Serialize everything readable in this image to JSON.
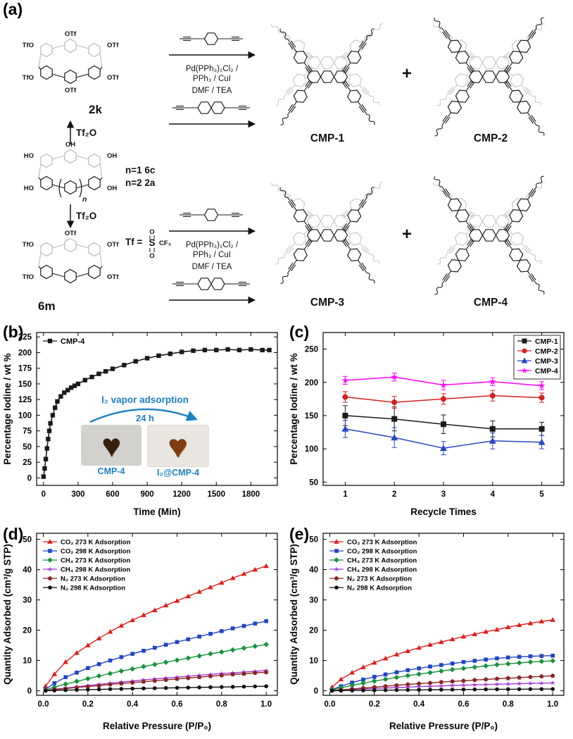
{
  "panel_labels": {
    "a": "(a)",
    "b": "(b)",
    "c": "(c)",
    "d": "(d)",
    "e": "(e)"
  },
  "scheme": {
    "compound_top": "2k",
    "compound_mid_n1": "n=1 6c",
    "compound_mid_n2": "n=2 2a",
    "compound_bottom": "6m",
    "tf2o": "Tf₂O",
    "catalyst_line1": "Pd(PPh₃)₂Cl₂ /",
    "catalyst_line2": "PPh₃ / CuI",
    "solvent": "DMF / TEA",
    "tf_eq": "Tf =",
    "tf_s": "S",
    "tf_o": "O",
    "tf_cf3": "CF₃",
    "plus": "+",
    "products": [
      "CMP-1",
      "CMP-2",
      "CMP-3",
      "CMP-4"
    ],
    "otf": "OTf",
    "tfo": "TfO",
    "oh": "OH",
    "ho": "HO",
    "n": "n"
  },
  "chart_data": [
    {
      "id": "b",
      "type": "line",
      "xlabel": "Time (Min)",
      "ylabel": "Percentage Iodine / wt %",
      "xlim": [
        -60,
        2030
      ],
      "ylim": [
        -12,
        232
      ],
      "xticks": [
        0,
        300,
        600,
        900,
        1200,
        1500,
        1800
      ],
      "xtick_labels": [
        "0",
        "300",
        "600",
        "900",
        "1200",
        "1500",
        "1800"
      ],
      "yticks": [
        0,
        25,
        50,
        75,
        100,
        125,
        150,
        175,
        200,
        225
      ],
      "ytick_labels": [
        "0",
        "25",
        "50",
        "75",
        "100",
        "125",
        "150",
        "175",
        "200",
        "225"
      ],
      "legend": {
        "pos": "tl",
        "box": false,
        "fs": 11
      },
      "msize": 3.2,
      "lw": 1.6,
      "series": [
        {
          "name": "CMP-4",
          "color": "#1a1a1a",
          "marker": "square",
          "x": [
            0,
            10,
            20,
            30,
            40,
            50,
            60,
            80,
            100,
            120,
            150,
            180,
            210,
            240,
            270,
            300,
            360,
            420,
            480,
            540,
            600,
            700,
            800,
            900,
            1000,
            1100,
            1200,
            1300,
            1400,
            1500,
            1600,
            1700,
            1800,
            1900,
            1960
          ],
          "y": [
            2,
            15,
            30,
            47,
            62,
            75,
            87,
            100,
            112,
            122,
            130,
            136,
            140,
            144,
            147,
            150,
            156,
            161,
            166,
            170,
            174,
            180,
            186,
            191,
            195,
            198,
            201,
            203,
            204,
            204,
            205,
            204,
            205,
            204,
            204
          ]
        }
      ],
      "inset": {
        "line1": "I₂ vapor adsorption",
        "line2": "24 h",
        "photo1_label": "CMP-4",
        "photo2_label": "I₂@CMP-4",
        "heart": "♥",
        "text_color": "#1b80c4"
      }
    },
    {
      "id": "c",
      "type": "line",
      "xlabel": "Recycle Times",
      "ylabel": "Percentage Iodine / wt %",
      "xlim": [
        0.55,
        5.45
      ],
      "ylim": [
        45,
        275
      ],
      "xticks": [
        1,
        2,
        3,
        4,
        5
      ],
      "xtick_labels": [
        "1",
        "2",
        "3",
        "4",
        "5"
      ],
      "yticks": [
        50,
        100,
        150,
        200,
        250
      ],
      "ytick_labels": [
        "50",
        "100",
        "150",
        "200",
        "250"
      ],
      "legend": {
        "pos": "tr",
        "box": true,
        "w": 66,
        "fs": 10.5
      },
      "msize": 4,
      "lw": 1.5,
      "series": [
        {
          "name": "CMP-1",
          "color": "#1a1a1a",
          "marker": "square",
          "x": [
            1,
            2,
            3,
            4,
            5
          ],
          "y": [
            150,
            145,
            137,
            130,
            130
          ],
          "err": [
            15,
            18,
            14,
            12,
            10
          ]
        },
        {
          "name": "CMP-2",
          "color": "#d42020",
          "marker": "circle",
          "x": [
            1,
            2,
            3,
            4,
            5
          ],
          "y": [
            178,
            170,
            175,
            180,
            177
          ],
          "err": [
            8,
            9,
            8,
            8,
            7
          ]
        },
        {
          "name": "CMP-3",
          "color": "#2847c8",
          "marker": "triangle",
          "x": [
            1,
            2,
            3,
            4,
            5
          ],
          "y": [
            130,
            117,
            101,
            112,
            110
          ],
          "err": [
            13,
            15,
            10,
            12,
            10
          ]
        },
        {
          "name": "CMP-4",
          "color": "#ff00ff",
          "marker": "star",
          "x": [
            1,
            2,
            3,
            4,
            5
          ],
          "y": [
            203,
            208,
            196,
            201,
            195
          ],
          "err": [
            6,
            6,
            7,
            6,
            6
          ]
        }
      ]
    },
    {
      "id": "d",
      "type": "line",
      "xlabel": "Relative Pressure (P/P₀)",
      "ylabel": "Quantity Adsorbed (cm³/g STP)",
      "xlim": [
        -0.03,
        1.05
      ],
      "ylim": [
        -1.5,
        52
      ],
      "xticks": [
        0,
        0.2,
        0.4,
        0.6,
        0.8,
        1.0
      ],
      "xtick_labels": [
        "0.0",
        "0.2",
        "0.4",
        "0.6",
        "0.8",
        "1.0"
      ],
      "yticks": [
        0,
        10,
        20,
        30,
        40,
        50
      ],
      "ytick_labels": [
        "0",
        "10",
        "20",
        "30",
        "40",
        "50"
      ],
      "legend": {
        "pos": "tl",
        "box": false,
        "fs": 9.5
      },
      "msize": 2.8,
      "lw": 1.4,
      "series": [
        {
          "name": "CO₂ 273 K Adsorption",
          "color": "#e01b1b",
          "marker": "triangle",
          "x": [
            0.01,
            0.05,
            0.1,
            0.15,
            0.2,
            0.25,
            0.3,
            0.35,
            0.4,
            0.45,
            0.5,
            0.55,
            0.6,
            0.65,
            0.7,
            0.75,
            0.8,
            0.85,
            0.9,
            0.95,
            1.0
          ],
          "y": [
            1.5,
            5.5,
            9.5,
            12.5,
            15,
            17.3,
            19.5,
            21.5,
            23.3,
            25,
            26.6,
            28.2,
            29.7,
            31.2,
            32.7,
            34.2,
            35.7,
            37.2,
            38.6,
            40,
            41.2
          ]
        },
        {
          "name": "CO₂ 298 K Adsorption",
          "color": "#2145c4",
          "marker": "square",
          "x": [
            0.01,
            0.05,
            0.1,
            0.15,
            0.2,
            0.25,
            0.3,
            0.35,
            0.4,
            0.45,
            0.5,
            0.55,
            0.6,
            0.65,
            0.7,
            0.75,
            0.8,
            0.85,
            0.9,
            0.95,
            1.0
          ],
          "y": [
            0.5,
            2.5,
            4.5,
            6,
            7.5,
            8.8,
            10,
            11.1,
            12.2,
            13.2,
            14.2,
            15.2,
            16.1,
            17,
            17.9,
            18.8,
            19.7,
            20.6,
            21.4,
            22.2,
            23
          ]
        },
        {
          "name": "CH₄ 273 K Adsorption",
          "color": "#15933b",
          "marker": "diamond",
          "x": [
            0.01,
            0.05,
            0.1,
            0.15,
            0.2,
            0.25,
            0.3,
            0.35,
            0.4,
            0.45,
            0.5,
            0.55,
            0.6,
            0.65,
            0.7,
            0.75,
            0.8,
            0.85,
            0.9,
            0.95,
            1.0
          ],
          "y": [
            0.3,
            1.2,
            2.2,
            3.1,
            4,
            4.9,
            5.7,
            6.5,
            7.2,
            8,
            8.7,
            9.4,
            10.1,
            10.8,
            11.5,
            12.2,
            12.8,
            13.5,
            14.1,
            14.7,
            15.3
          ]
        },
        {
          "name": "CH₄ 298 K Adsorption",
          "color": "#a23bd6",
          "marker": "star",
          "x": [
            0.01,
            0.05,
            0.1,
            0.15,
            0.2,
            0.25,
            0.3,
            0.35,
            0.4,
            0.45,
            0.5,
            0.55,
            0.6,
            0.65,
            0.7,
            0.75,
            0.8,
            0.85,
            0.9,
            0.95,
            1.0
          ],
          "y": [
            0.1,
            0.5,
            0.9,
            1.3,
            1.7,
            2.1,
            2.5,
            2.9,
            3.2,
            3.6,
            3.9,
            4.2,
            4.5,
            4.8,
            5.1,
            5.4,
            5.7,
            5.9,
            6.2,
            6.4,
            6.7
          ]
        },
        {
          "name": "N₂  273 K Adsorption",
          "color": "#8a2525",
          "marker": "pentagon",
          "x": [
            0.01,
            0.05,
            0.1,
            0.15,
            0.2,
            0.25,
            0.3,
            0.35,
            0.4,
            0.45,
            0.5,
            0.55,
            0.6,
            0.65,
            0.7,
            0.75,
            0.8,
            0.85,
            0.9,
            0.95,
            1.0
          ],
          "y": [
            0.1,
            0.4,
            0.7,
            1.1,
            1.4,
            1.7,
            2.1,
            2.4,
            2.7,
            3.0,
            3.3,
            3.6,
            3.9,
            4.2,
            4.5,
            4.8,
            5.1,
            5.4,
            5.6,
            5.9,
            6.1
          ]
        },
        {
          "name": "N₂  298 K Adsorption",
          "color": "#111111",
          "marker": "circle",
          "x": [
            0.01,
            0.05,
            0.1,
            0.15,
            0.2,
            0.25,
            0.3,
            0.35,
            0.4,
            0.45,
            0.5,
            0.55,
            0.6,
            0.65,
            0.7,
            0.75,
            0.8,
            0.85,
            0.9,
            0.95,
            1.0
          ],
          "y": [
            0.02,
            0.1,
            0.2,
            0.3,
            0.38,
            0.45,
            0.55,
            0.62,
            0.7,
            0.78,
            0.85,
            0.92,
            1.0,
            1.05,
            1.12,
            1.18,
            1.25,
            1.3,
            1.38,
            1.44,
            1.5
          ]
        }
      ]
    },
    {
      "id": "e",
      "type": "line",
      "xlabel": "Relative Pressure (P/P₀)",
      "ylabel": "Quantity Adsorbed (cm³/g STP)",
      "xlim": [
        -0.03,
        1.05
      ],
      "ylim": [
        -1.5,
        52
      ],
      "xticks": [
        0,
        0.2,
        0.4,
        0.6,
        0.8,
        1.0
      ],
      "xtick_labels": [
        "0.0",
        "0.2",
        "0.4",
        "0.6",
        "0.8",
        "1.0"
      ],
      "yticks": [
        0,
        10,
        20,
        30,
        40,
        50
      ],
      "ytick_labels": [
        "0",
        "10",
        "20",
        "30",
        "40",
        "50"
      ],
      "legend": {
        "pos": "tl",
        "box": false,
        "fs": 9.5
      },
      "msize": 2.8,
      "lw": 1.4,
      "series": [
        {
          "name": "CO₂ 273 K Adsorption",
          "color": "#e01b1b",
          "marker": "triangle",
          "x": [
            0.01,
            0.05,
            0.1,
            0.15,
            0.2,
            0.25,
            0.3,
            0.35,
            0.4,
            0.45,
            0.5,
            0.55,
            0.6,
            0.65,
            0.7,
            0.75,
            0.8,
            0.85,
            0.9,
            0.95,
            1.0
          ],
          "y": [
            1.2,
            3.8,
            6,
            7.8,
            9.3,
            10.7,
            12,
            13.1,
            14.2,
            15.2,
            16.1,
            17,
            17.9,
            18.7,
            19.5,
            20.2,
            21,
            21.7,
            22.3,
            22.9,
            23.4
          ]
        },
        {
          "name": "CO₂ 298 K Adsorption",
          "color": "#2145c4",
          "marker": "square",
          "x": [
            0.01,
            0.05,
            0.1,
            0.15,
            0.2,
            0.25,
            0.3,
            0.35,
            0.4,
            0.45,
            0.5,
            0.55,
            0.6,
            0.65,
            0.7,
            0.75,
            0.8,
            0.85,
            0.9,
            0.95,
            1.0
          ],
          "y": [
            0.4,
            1.5,
            2.7,
            3.7,
            4.6,
            5.4,
            6.1,
            6.8,
            7.4,
            8,
            8.5,
            9,
            9.5,
            9.9,
            10.3,
            10.7,
            11,
            11.2,
            11.4,
            11.5,
            11.6
          ]
        },
        {
          "name": "CH₄ 273 K Adsorption",
          "color": "#15933b",
          "marker": "diamond",
          "x": [
            0.01,
            0.05,
            0.1,
            0.15,
            0.2,
            0.25,
            0.3,
            0.35,
            0.4,
            0.45,
            0.5,
            0.55,
            0.6,
            0.65,
            0.7,
            0.75,
            0.8,
            0.85,
            0.9,
            0.95,
            1.0
          ],
          "y": [
            0.3,
            1,
            1.8,
            2.5,
            3.2,
            3.8,
            4.4,
            5,
            5.5,
            6,
            6.5,
            7,
            7.4,
            7.8,
            8.2,
            8.6,
            8.9,
            9.2,
            9.5,
            9.7,
            9.9
          ]
        },
        {
          "name": "CH₄ 298 K Adsorption",
          "color": "#a23bd6",
          "marker": "star",
          "x": [
            0.01,
            0.05,
            0.1,
            0.15,
            0.2,
            0.25,
            0.3,
            0.35,
            0.4,
            0.45,
            0.5,
            0.55,
            0.6,
            0.65,
            0.7,
            0.75,
            0.8,
            0.85,
            0.9,
            0.95,
            1.0
          ],
          "y": [
            0.05,
            0.2,
            0.4,
            0.6,
            0.75,
            0.9,
            1.05,
            1.2,
            1.35,
            1.5,
            1.6,
            1.75,
            1.85,
            1.95,
            2.05,
            2.15,
            2.25,
            2.35,
            2.45,
            2.5,
            2.6
          ]
        },
        {
          "name": "N₂  273 K Adsorption",
          "color": "#8a2525",
          "marker": "pentagon",
          "x": [
            0.01,
            0.05,
            0.1,
            0.15,
            0.2,
            0.25,
            0.3,
            0.35,
            0.4,
            0.45,
            0.5,
            0.55,
            0.6,
            0.65,
            0.7,
            0.75,
            0.8,
            0.85,
            0.9,
            0.95,
            1.0
          ],
          "y": [
            0.1,
            0.3,
            0.6,
            0.9,
            1.2,
            1.5,
            1.8,
            2.1,
            2.35,
            2.6,
            2.85,
            3.1,
            3.3,
            3.55,
            3.75,
            3.95,
            4.15,
            4.35,
            4.55,
            4.75,
            4.95
          ]
        },
        {
          "name": "N₂  298 K Adsorption",
          "color": "#111111",
          "marker": "circle",
          "x": [
            0.01,
            0.05,
            0.1,
            0.15,
            0.2,
            0.25,
            0.3,
            0.35,
            0.4,
            0.45,
            0.5,
            0.55,
            0.6,
            0.65,
            0.7,
            0.75,
            0.8,
            0.85,
            0.9,
            0.95,
            1.0
          ],
          "y": [
            0.02,
            0.05,
            0.1,
            0.13,
            0.17,
            0.2,
            0.24,
            0.27,
            0.3,
            0.33,
            0.36,
            0.39,
            0.42,
            0.44,
            0.47,
            0.49,
            0.51,
            0.53,
            0.55,
            0.56,
            0.58
          ]
        }
      ]
    }
  ]
}
